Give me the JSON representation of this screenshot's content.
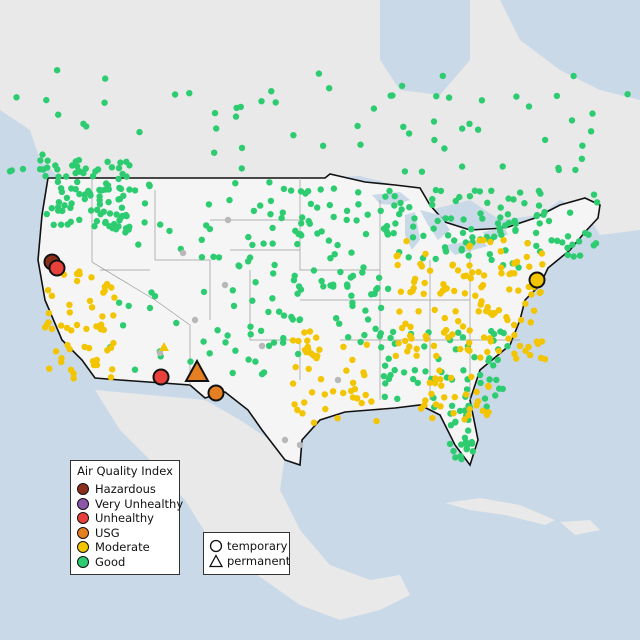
{
  "legend": {
    "title": "Air Quality Index",
    "items": [
      {
        "label": "Hazardous",
        "color": "#8b2e1a"
      },
      {
        "label": "Very Unhealthy",
        "color": "#8e56a9"
      },
      {
        "label": "Unhealthy",
        "color": "#e8403a"
      },
      {
        "label": "USG",
        "color": "#e67e22"
      },
      {
        "label": "Moderate",
        "color": "#f2c500"
      },
      {
        "label": "Good",
        "color": "#2ecc71"
      }
    ]
  },
  "shape_legend": {
    "items": [
      {
        "label": "temporary",
        "shape": "circle"
      },
      {
        "label": "permanent",
        "shape": "triangle"
      }
    ]
  },
  "colors": {
    "water": "#c9d9e8",
    "land": "#ececec",
    "us_land": "#f5f5f5",
    "no_data": "#b8b8b8"
  }
}
